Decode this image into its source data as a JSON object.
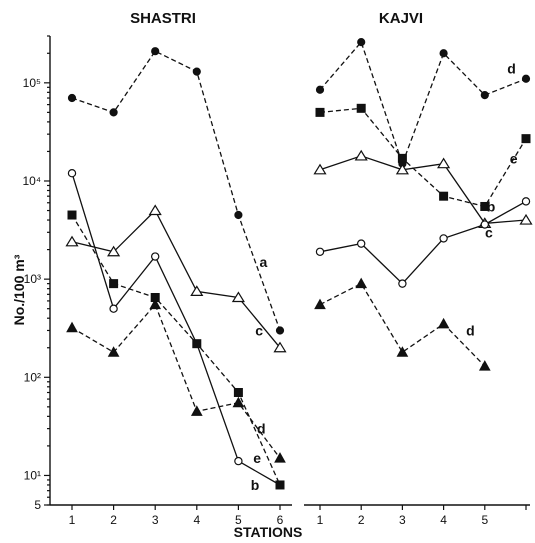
{
  "chart_data": {
    "type": "line",
    "y_scale": "log",
    "ylabel": "No./100 m³",
    "xlabel": "STATIONS",
    "ylim": [
      5,
      300000
    ],
    "y_ticks": [
      {
        "value": 5,
        "label": "5"
      },
      {
        "value": 10,
        "label": "10¹"
      },
      {
        "value": 100,
        "label": "10²"
      },
      {
        "value": 1000,
        "label": "10³"
      },
      {
        "value": 10000,
        "label": "10⁴"
      },
      {
        "value": 100000,
        "label": "10⁵"
      }
    ],
    "panels": [
      {
        "title": "SHASTRI",
        "x_ticks": [
          "1",
          "2",
          "3",
          "4",
          "5",
          "6"
        ],
        "series": [
          {
            "name": "a",
            "style": "dashed",
            "marker": "filled-circle",
            "x": [
              1,
              2,
              3,
              4,
              5,
              6
            ],
            "y": [
              70000,
              50000,
              210000,
              130000,
              4500,
              300
            ],
            "label_at": [
              5.6,
              1500
            ]
          },
          {
            "name": "b",
            "style": "solid",
            "marker": "open-circle",
            "x": [
              1,
              2,
              3,
              4,
              5,
              6
            ],
            "y": [
              12000,
              500,
              1700,
              220,
              14,
              8
            ],
            "label_at": [
              5.4,
              8
            ]
          },
          {
            "name": "c",
            "style": "solid",
            "marker": "open-triangle",
            "x": [
              1,
              2,
              3,
              4,
              5,
              6
            ],
            "y": [
              2400,
              1900,
              5000,
              750,
              650,
              200
            ],
            "label_at": [
              5.5,
              300
            ]
          },
          {
            "name": "d",
            "style": "dashed",
            "marker": "filled-triangle",
            "x": [
              1,
              2,
              3,
              4,
              5,
              6
            ],
            "y": [
              320,
              180,
              550,
              45,
              55,
              15
            ],
            "label_at": [
              5.55,
              30
            ]
          },
          {
            "name": "e",
            "style": "dashed",
            "marker": "filled-square",
            "x": [
              1,
              2,
              3,
              4,
              5,
              6
            ],
            "y": [
              4500,
              900,
              650,
              220,
              70,
              8
            ],
            "label_at": [
              5.45,
              15
            ]
          }
        ]
      },
      {
        "title": "KAJVI",
        "x_ticks": [
          "1",
          "2",
          "3",
          "4",
          "5",
          ""
        ],
        "series": [
          {
            "name": "d",
            "style": "dashed",
            "marker": "filled-circle",
            "x": [
              1,
              2,
              3,
              4,
              5,
              6
            ],
            "y": [
              85000,
              260000,
              15000,
              200000,
              75000,
              110000
            ],
            "label_at": [
              5.65,
              140000
            ]
          },
          {
            "name": "e",
            "style": "dashed",
            "marker": "filled-square",
            "x": [
              1,
              2,
              3,
              4,
              5,
              6
            ],
            "y": [
              50000,
              55000,
              17000,
              7000,
              5500,
              27000
            ],
            "label_at": [
              5.7,
              17000
            ]
          },
          {
            "name": "b",
            "style": "solid",
            "marker": "open-triangle",
            "x": [
              1,
              2,
              3,
              4,
              5,
              6
            ],
            "y": [
              13000,
              18000,
              13000,
              15000,
              3700,
              4000
            ],
            "label_at": [
              5.15,
              5500
            ]
          },
          {
            "name": "c",
            "style": "solid",
            "marker": "open-circle",
            "x": [
              1,
              2,
              3,
              4,
              5,
              6
            ],
            "y": [
              1900,
              2300,
              900,
              2600,
              3600,
              6200
            ],
            "label_at": [
              5.1,
              3000
            ]
          },
          {
            "name": "d",
            "style": "dashed",
            "marker": "filled-triangle",
            "x": [
              1,
              2,
              3,
              4,
              5
            ],
            "y": [
              550,
              900,
              180,
              350,
              130
            ],
            "label_at": [
              4.65,
              300
            ]
          }
        ]
      }
    ]
  }
}
